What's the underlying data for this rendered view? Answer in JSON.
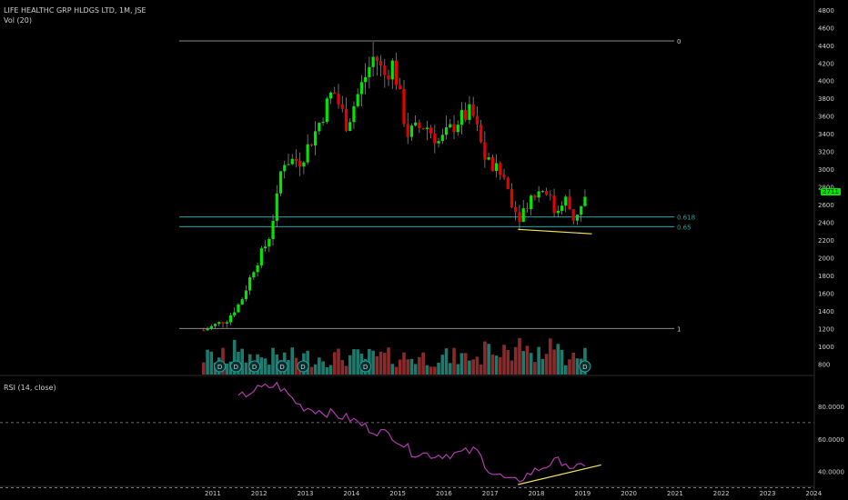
{
  "header": {
    "symbol_line": "LIFE HEALTHC GRP HLDGS LTD, 1M, JSE",
    "volume_line": "Vol (20)",
    "rsi_line": "RSI (14, close)"
  },
  "colors": {
    "background": "#000000",
    "up": "#00e600",
    "down": "#e60000",
    "vol_up": "#1f7a6e",
    "vol_down": "#8b2a2a",
    "rsi": "#b03bb0",
    "fib_line": "#1aa7a7",
    "fib_level_line": "#8a8a8a",
    "trendline": "#f0e060",
    "text": "#cfcfcf",
    "price_tag": "#00e600"
  },
  "chart_data": [
    {
      "type": "candlestick",
      "title": "LIFE HEALTHC GRP HLDGS LTD, 1M, JSE",
      "ylim": [
        700,
        4850
      ],
      "y_ticks": [
        "4800",
        "4600",
        "4400",
        "4200",
        "4000",
        "3800",
        "3600",
        "3400",
        "3200",
        "3000",
        "2800",
        "2600",
        "2400",
        "2200",
        "2000",
        "1800",
        "1600",
        "1400",
        "1200",
        "1000",
        "800"
      ],
      "last_price_label": "2711",
      "fib_levels": [
        {
          "label": "0",
          "value": 4450
        },
        {
          "label": "0.618",
          "value": 2460
        },
        {
          "label": "0.65",
          "value": 2350
        },
        {
          "label": "1",
          "value": 1200
        }
      ],
      "dividend_marker": "D",
      "dividend_count": 9,
      "x_ticks": [
        "2011",
        "2012",
        "2013",
        "2014",
        "2015",
        "2016",
        "2017",
        "2018",
        "2019",
        "2020",
        "2021",
        "2022",
        "2023",
        "2024"
      ]
    },
    {
      "type": "line",
      "title": "RSI (14, close)",
      "ylim": [
        32,
        95
      ],
      "y_ticks": [
        "80.0000",
        "60.0000",
        "40.0000"
      ],
      "bands": [
        70,
        30
      ]
    }
  ]
}
